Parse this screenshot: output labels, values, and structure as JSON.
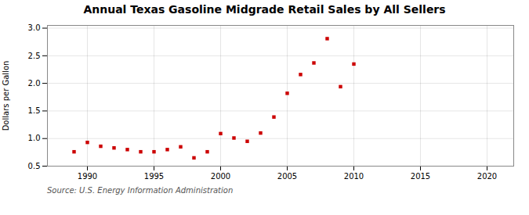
{
  "chart_data": {
    "type": "scatter",
    "title": "Annual Texas Gasoline Midgrade Retail Sales by All Sellers",
    "ylabel": "Dollars per Gallon",
    "source": "Source: U.S. Energy Information Administration",
    "x": [
      1989,
      1990,
      1991,
      1992,
      1993,
      1994,
      1995,
      1996,
      1997,
      1998,
      1999,
      2000,
      2001,
      2002,
      2003,
      2004,
      2005,
      2006,
      2007,
      2008,
      2009,
      2010
    ],
    "values": [
      0.76,
      0.93,
      0.86,
      0.83,
      0.8,
      0.76,
      0.76,
      0.8,
      0.85,
      0.65,
      0.76,
      1.09,
      1.01,
      0.95,
      1.1,
      1.39,
      1.82,
      2.16,
      2.37,
      2.81,
      1.94,
      2.35
    ],
    "color": "#cc0000",
    "marker": "square",
    "xlim": [
      1987,
      2022
    ],
    "ylim": [
      0.5,
      3.05
    ],
    "xticks": [
      1990,
      1995,
      2000,
      2005,
      2010,
      2015,
      2020
    ],
    "yticks": [
      0.5,
      {
        "value": 1.0,
        "label": "1.0"
      },
      1.5,
      {
        "value": 2.0,
        "label": "2.0"
      },
      2.5,
      {
        "value": 3.0,
        "label": "3.0"
      }
    ],
    "grid": true
  }
}
